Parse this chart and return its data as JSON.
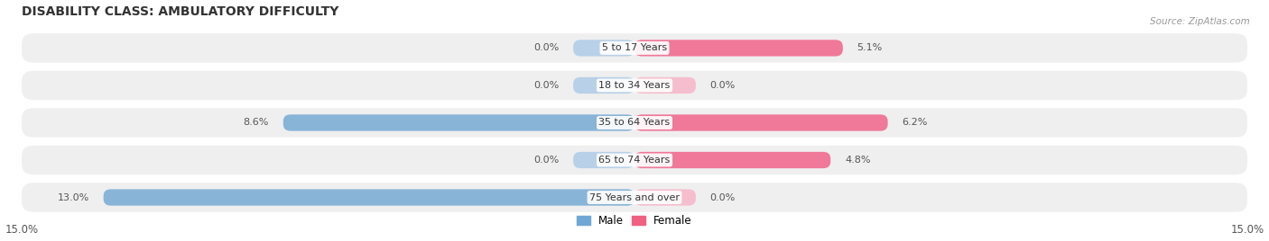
{
  "title": "DISABILITY CLASS: AMBULATORY DIFFICULTY",
  "source": "Source: ZipAtlas.com",
  "categories": [
    "5 to 17 Years",
    "18 to 34 Years",
    "35 to 64 Years",
    "65 to 74 Years",
    "75 Years and over"
  ],
  "male_values": [
    0.0,
    0.0,
    8.6,
    0.0,
    13.0
  ],
  "female_values": [
    5.1,
    0.0,
    6.2,
    4.8,
    0.0
  ],
  "x_max": 15.0,
  "x_min": -15.0,
  "male_color": "#88b4d8",
  "female_color": "#f07898",
  "male_color_light": "#b8d0e8",
  "female_color_light": "#f5bece",
  "row_bg_color": "#efefef",
  "title_color": "#333333",
  "legend_male_color": "#6fa8d4",
  "legend_female_color": "#f06080",
  "value_color": "#555555"
}
